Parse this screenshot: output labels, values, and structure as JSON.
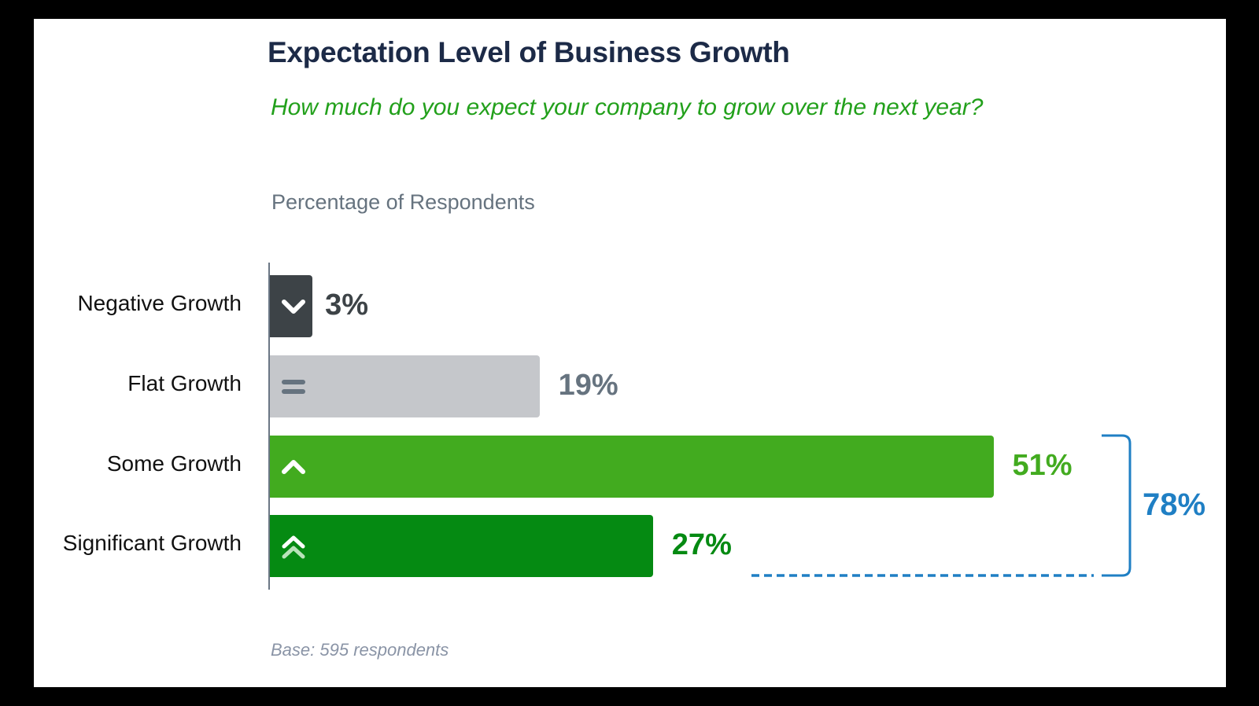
{
  "chart_data": {
    "type": "bar",
    "orientation": "horizontal",
    "title": "Expectation Level of Business Growth",
    "subtitle": "How much do you expect your company to grow over the next year?",
    "xlabel": "",
    "ylabel": "Percentage of Respondents",
    "xlim": [
      0,
      100
    ],
    "grid": false,
    "categories": [
      "Negative Growth",
      "Flat Growth",
      "Some Growth",
      "Significant Growth"
    ],
    "values": [
      3,
      19,
      51,
      27
    ],
    "value_labels": [
      "3%",
      "19%",
      "51%",
      "27%"
    ],
    "bar_colors": [
      "#3d4347",
      "#c5c7cb",
      "#42ab1f",
      "#058a12"
    ],
    "label_colors": [
      "#3d4347",
      "#66737f",
      "#42ab1f",
      "#058a12"
    ],
    "icons": [
      "chevron-down-icon",
      "equals-icon",
      "chevron-up-icon",
      "double-chevron-up-icon"
    ],
    "annotation": {
      "text": "78%",
      "value": 78,
      "groups": [
        "Some Growth",
        "Significant Growth"
      ],
      "color": "#1f7fc4"
    },
    "footnote": "Base: 595 respondents"
  }
}
